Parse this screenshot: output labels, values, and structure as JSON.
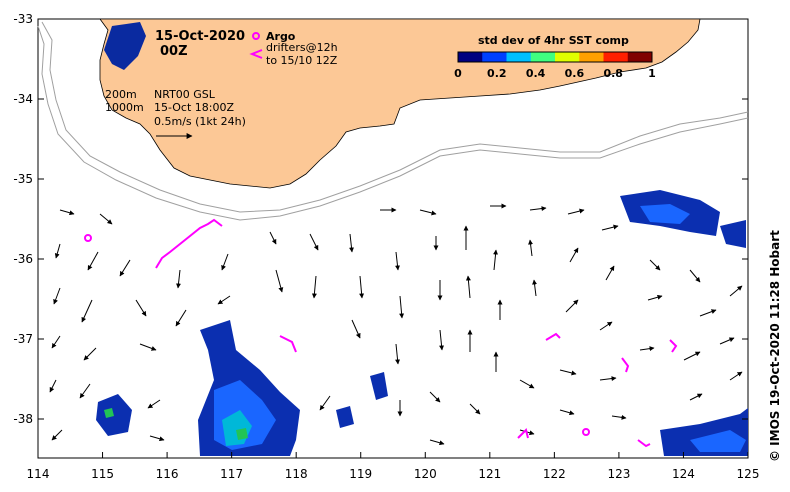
{
  "header": {
    "date": "15-Oct-2020",
    "time": "00Z"
  },
  "legend_markers": {
    "argo_label": "Argo",
    "drifters_line1": "drifters@12h",
    "drifters_line2": "to 15/10 12Z",
    "argo_color": "#ff00ff",
    "drifter_color": "#ff00ff"
  },
  "depth_labels": {
    "d200": "200m",
    "d1000": "1000m"
  },
  "product": {
    "line1": "NRT00 GSL",
    "line2": "15-Oct 18:00Z",
    "scale": "0.5m/s (1kt 24h)"
  },
  "colorbar": {
    "title": "std dev of 4hr SST comp",
    "ticks": [
      "0",
      "0.2",
      "0.4",
      "0.6",
      "0.8",
      "1"
    ],
    "colors": [
      "#000080",
      "#0040ff",
      "#00c0ff",
      "#40ff80",
      "#e0ff00",
      "#ffa000",
      "#ff2000",
      "#800000"
    ]
  },
  "axes": {
    "x_ticks": [
      "114",
      "115",
      "116",
      "117",
      "118",
      "119",
      "120",
      "121",
      "122",
      "123",
      "124",
      "125"
    ],
    "y_ticks": [
      "-33",
      "-34",
      "-35",
      "-36",
      "-37",
      "-38"
    ]
  },
  "credit": "© IMOS 19-Oct-2020 11:28 Hobart",
  "colors": {
    "land": "#fcc896",
    "ocean": "#ffffff",
    "isobath": "#a0a0a0"
  }
}
